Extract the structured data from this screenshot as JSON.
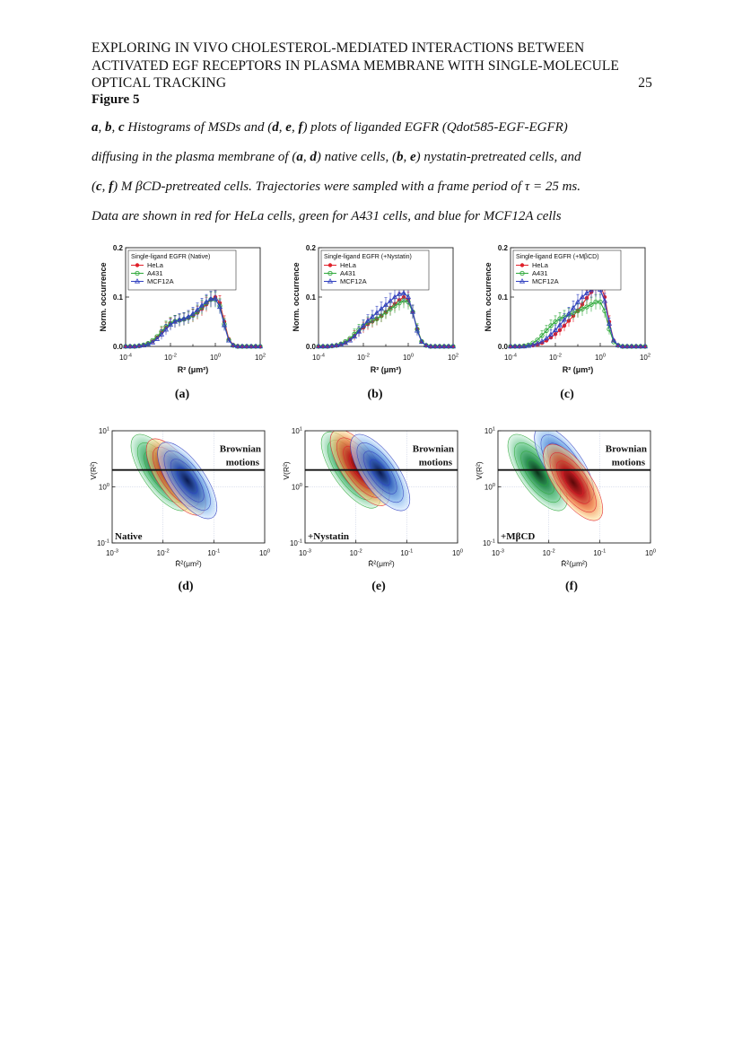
{
  "header": {
    "line1": "EXPLORING IN VIVO CHOLESTEROL-MEDIATED INTERACTIONS BETWEEN",
    "line2": "ACTIVATED EGF RECEPTORS IN PLASMA MEMBRANE WITH SINGLE-MOLECULE",
    "line3": "OPTICAL TRACKING",
    "page_number": "25"
  },
  "figure_title": "Figure 5",
  "caption": {
    "l1": {
      "a": "a",
      "b": "b",
      "c": "c",
      "t1": " Histograms of MSDs and (",
      "d": "d",
      "e": "e",
      "f": "f",
      "t2": ") plots of liganded EGFR (Qdot585-EGF-EGFR)"
    },
    "l2": {
      "t1": "diffusing in the plasma membrane of (",
      "a": "a",
      "d": "d",
      "t2": ") native cells, (",
      "b": "b",
      "e": "e",
      "t3": ") nystatin-pretreated cells, and"
    },
    "l3": {
      "t1": "(",
      "c": "c",
      "f": "f",
      "t2": ") M βCD-pretreated cells. Trajectories were sampled with a frame period of τ = 25 ms."
    },
    "l4": "Data are shown in red for HeLa cells, green for A431 cells, and blue for MCF12A cells"
  },
  "colors": {
    "hela": "#e0202a",
    "a431": "#2ea83a",
    "mcf12a": "#3040c0"
  },
  "chart_data": [
    {
      "type": "line",
      "panel_label": "(a)",
      "title": "Single-ligand EGFR (Native)",
      "xlabel": "R² (μm²)",
      "ylabel": "Norm. occurrence",
      "x_scale": "log",
      "xlim": [
        0.0001,
        100
      ],
      "ylim": [
        0,
        0.2
      ],
      "x_ticks": [
        "10-4",
        "10-2",
        "100",
        "102"
      ],
      "y_ticks": [
        "0.0",
        "0.1",
        "0.2"
      ],
      "legend": "top-left",
      "x": [
        -4,
        -3.8,
        -3.6,
        -3.4,
        -3.2,
        -3.0,
        -2.8,
        -2.6,
        -2.4,
        -2.2,
        -2.0,
        -1.8,
        -1.6,
        -1.4,
        -1.2,
        -1.0,
        -0.8,
        -0.6,
        -0.4,
        -0.2,
        0.0,
        0.2,
        0.4,
        0.6,
        0.8,
        1.0,
        1.2,
        1.4,
        1.6,
        1.8,
        2.0
      ],
      "series": [
        {
          "name": "HeLa",
          "values": [
            0,
            0,
            0,
            0.001,
            0.002,
            0.005,
            0.01,
            0.018,
            0.028,
            0.038,
            0.046,
            0.05,
            0.053,
            0.055,
            0.058,
            0.062,
            0.068,
            0.076,
            0.085,
            0.095,
            0.1,
            0.088,
            0.05,
            0.015,
            0.003,
            0.001,
            0,
            0,
            0,
            0,
            0
          ]
        },
        {
          "name": "A431",
          "values": [
            0,
            0,
            0,
            0.001,
            0.003,
            0.006,
            0.012,
            0.02,
            0.03,
            0.04,
            0.047,
            0.051,
            0.053,
            0.055,
            0.058,
            0.063,
            0.07,
            0.079,
            0.088,
            0.095,
            0.095,
            0.082,
            0.045,
            0.013,
            0.002,
            0,
            0,
            0,
            0,
            0,
            0
          ]
        },
        {
          "name": "MCF12A",
          "values": [
            0,
            0,
            0,
            0.001,
            0.002,
            0.004,
            0.008,
            0.015,
            0.024,
            0.034,
            0.044,
            0.05,
            0.054,
            0.056,
            0.06,
            0.066,
            0.074,
            0.083,
            0.09,
            0.096,
            0.097,
            0.08,
            0.043,
            0.012,
            0.002,
            0,
            0,
            0,
            0,
            0,
            0
          ]
        }
      ]
    },
    {
      "type": "line",
      "panel_label": "(b)",
      "title": "Single-ligand EGFR (+Nystatin)",
      "xlabel": "R² (μm²)",
      "ylabel": "Norm. occurrence",
      "x_scale": "log",
      "xlim": [
        0.0001,
        100
      ],
      "ylim": [
        0,
        0.2
      ],
      "x_ticks": [
        "10-4",
        "10-2",
        "100",
        "102"
      ],
      "y_ticks": [
        "0.0",
        "0.1",
        "0.2"
      ],
      "legend": "top-left",
      "x": [
        -4,
        -3.8,
        -3.6,
        -3.4,
        -3.2,
        -3.0,
        -2.8,
        -2.6,
        -2.4,
        -2.2,
        -2.0,
        -1.8,
        -1.6,
        -1.4,
        -1.2,
        -1.0,
        -0.8,
        -0.6,
        -0.4,
        -0.2,
        0.0,
        0.2,
        0.4,
        0.6,
        0.8,
        1.0,
        1.2,
        1.4,
        1.6,
        1.8,
        2.0
      ],
      "series": [
        {
          "name": "HeLa",
          "values": [
            0,
            0,
            0,
            0.001,
            0.002,
            0.004,
            0.008,
            0.014,
            0.022,
            0.03,
            0.038,
            0.045,
            0.05,
            0.055,
            0.062,
            0.07,
            0.078,
            0.086,
            0.094,
            0.1,
            0.095,
            0.07,
            0.035,
            0.01,
            0.002,
            0,
            0,
            0,
            0,
            0,
            0
          ]
        },
        {
          "name": "A431",
          "values": [
            0,
            0,
            0,
            0.001,
            0.002,
            0.005,
            0.01,
            0.016,
            0.025,
            0.034,
            0.042,
            0.048,
            0.052,
            0.056,
            0.062,
            0.069,
            0.076,
            0.082,
            0.088,
            0.093,
            0.09,
            0.07,
            0.035,
            0.01,
            0.002,
            0,
            0,
            0,
            0,
            0,
            0
          ]
        },
        {
          "name": "MCF12A",
          "values": [
            0,
            0,
            0,
            0.001,
            0.002,
            0.004,
            0.007,
            0.012,
            0.02,
            0.03,
            0.042,
            0.052,
            0.06,
            0.068,
            0.076,
            0.084,
            0.092,
            0.1,
            0.106,
            0.108,
            0.1,
            0.07,
            0.032,
            0.009,
            0.002,
            0,
            0,
            0,
            0,
            0,
            0
          ]
        }
      ]
    },
    {
      "type": "line",
      "panel_label": "(c)",
      "title": "Single-ligand EGFR (+MβCD)",
      "xlabel": "R² (μm²)",
      "ylabel": "Norm. occurrence",
      "x_scale": "log",
      "xlim": [
        0.0001,
        100
      ],
      "ylim": [
        0,
        0.2
      ],
      "x_ticks": [
        "10-4",
        "10-2",
        "100",
        "102"
      ],
      "y_ticks": [
        "0.0",
        "0.1",
        "0.2"
      ],
      "legend": "top-left",
      "x": [
        -4,
        -3.8,
        -3.6,
        -3.4,
        -3.2,
        -3.0,
        -2.8,
        -2.6,
        -2.4,
        -2.2,
        -2.0,
        -1.8,
        -1.6,
        -1.4,
        -1.2,
        -1.0,
        -0.8,
        -0.6,
        -0.4,
        -0.2,
        0.0,
        0.2,
        0.4,
        0.6,
        0.8,
        1.0,
        1.2,
        1.4,
        1.6,
        1.8,
        2.0
      ],
      "series": [
        {
          "name": "HeLa",
          "values": [
            0,
            0,
            0,
            0,
            0.001,
            0.002,
            0.004,
            0.007,
            0.012,
            0.018,
            0.025,
            0.033,
            0.042,
            0.052,
            0.062,
            0.073,
            0.085,
            0.098,
            0.11,
            0.12,
            0.125,
            0.1,
            0.05,
            0.012,
            0.002,
            0,
            0,
            0,
            0,
            0,
            0
          ]
        },
        {
          "name": "A431",
          "values": [
            0,
            0,
            0,
            0.001,
            0.003,
            0.007,
            0.013,
            0.022,
            0.032,
            0.042,
            0.05,
            0.056,
            0.06,
            0.064,
            0.068,
            0.072,
            0.076,
            0.08,
            0.085,
            0.09,
            0.09,
            0.072,
            0.035,
            0.009,
            0.002,
            0,
            0,
            0,
            0,
            0,
            0
          ]
        },
        {
          "name": "MCF12A",
          "values": [
            0,
            0,
            0,
            0,
            0.001,
            0.003,
            0.006,
            0.01,
            0.016,
            0.024,
            0.033,
            0.043,
            0.054,
            0.066,
            0.078,
            0.09,
            0.1,
            0.108,
            0.114,
            0.118,
            0.115,
            0.092,
            0.046,
            0.012,
            0.002,
            0,
            0,
            0,
            0,
            0,
            0
          ]
        }
      ]
    },
    {
      "type": "heatmap",
      "panel_label": "(d)",
      "annotation": "Native",
      "region_label": [
        "Brownian",
        "motions"
      ],
      "xlabel": "R̄²(μm²)",
      "ylabel": "V(R²)",
      "x_scale": "log",
      "y_scale": "log",
      "xlim": [
        0.001,
        1
      ],
      "ylim": [
        0.1,
        10
      ],
      "x_ticks": [
        "10-3",
        "10-2",
        "10-1",
        "100"
      ],
      "y_ticks": [
        "10-1",
        "100",
        "101"
      ],
      "brownian_line_y": 2,
      "clusters": [
        {
          "name": "A431",
          "x": 0.009,
          "y": 1.8
        },
        {
          "name": "HeLa",
          "x": 0.018,
          "y": 1.5
        },
        {
          "name": "MCF12A",
          "x": 0.03,
          "y": 1.3
        }
      ]
    },
    {
      "type": "heatmap",
      "panel_label": "(e)",
      "annotation": "+Nystatin",
      "region_label": [
        "Brownian",
        "motions"
      ],
      "xlabel": "R̄²(μm²)",
      "ylabel": "V(R²)",
      "x_scale": "log",
      "y_scale": "log",
      "xlim": [
        0.001,
        1
      ],
      "ylim": [
        0.1,
        10
      ],
      "x_ticks": [
        "10-3",
        "10-2",
        "10-1",
        "100"
      ],
      "y_ticks": [
        "10-1",
        "100",
        "101"
      ],
      "brownian_line_y": 2,
      "clusters": [
        {
          "name": "A431",
          "x": 0.008,
          "y": 2.0
        },
        {
          "name": "HeLa",
          "x": 0.012,
          "y": 2.2
        },
        {
          "name": "MCF12A",
          "x": 0.03,
          "y": 1.8
        }
      ]
    },
    {
      "type": "heatmap",
      "panel_label": "(f)",
      "annotation": "+MβCD",
      "region_label": [
        "Brownian",
        "motions"
      ],
      "xlabel": "R̄²(μm²)",
      "ylabel": "V(R²)",
      "x_scale": "log",
      "y_scale": "log",
      "xlim": [
        0.001,
        1
      ],
      "ylim": [
        0.1,
        10
      ],
      "x_ticks": [
        "10-3",
        "10-2",
        "10-1",
        "100"
      ],
      "y_ticks": [
        "10-1",
        "100",
        "101"
      ],
      "brownian_line_y": 2,
      "clusters": [
        {
          "name": "A431",
          "x": 0.006,
          "y": 1.8
        },
        {
          "name": "MCF12A",
          "x": 0.02,
          "y": 2.5
        },
        {
          "name": "HeLa",
          "x": 0.03,
          "y": 1.2
        }
      ]
    }
  ]
}
